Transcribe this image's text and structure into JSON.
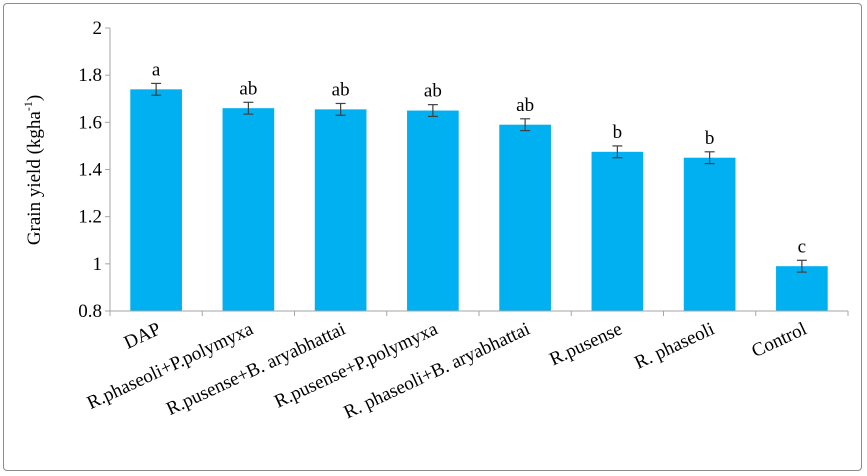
{
  "chart_data": {
    "type": "bar",
    "title": "",
    "xlabel": "",
    "ylabel": "Grain yield (kgha",
    "ylabel_superscript": "-1",
    "ylabel_suffix": ")",
    "ylim": [
      0.8,
      2
    ],
    "yticks": [
      "0.8",
      "1",
      "1.2",
      "1.4",
      "1.6",
      "1.8",
      "2"
    ],
    "ytick_values": [
      0.8,
      1.0,
      1.2,
      1.4,
      1.6,
      1.8,
      2.0
    ],
    "categories": [
      "DAP",
      "R.phaseoli+P.polymyxa",
      "R.pusense+B. aryabhattai",
      "R.pusense+P.polymyxa",
      "R. phaseoli+B. aryabhattai",
      "R.pusense",
      "R. phaseoli",
      "Control"
    ],
    "values": [
      1.74,
      1.66,
      1.655,
      1.65,
      1.59,
      1.475,
      1.45,
      0.99
    ],
    "errors": [
      0.025,
      0.025,
      0.025,
      0.025,
      0.025,
      0.025,
      0.025,
      0.025
    ],
    "significance_letters": [
      "a",
      "ab",
      "ab",
      "ab",
      "ab",
      "b",
      "b",
      "c"
    ],
    "bar_color": "#00b0f0",
    "error_bar_color": "#404040",
    "grid": false,
    "legend": "none"
  }
}
